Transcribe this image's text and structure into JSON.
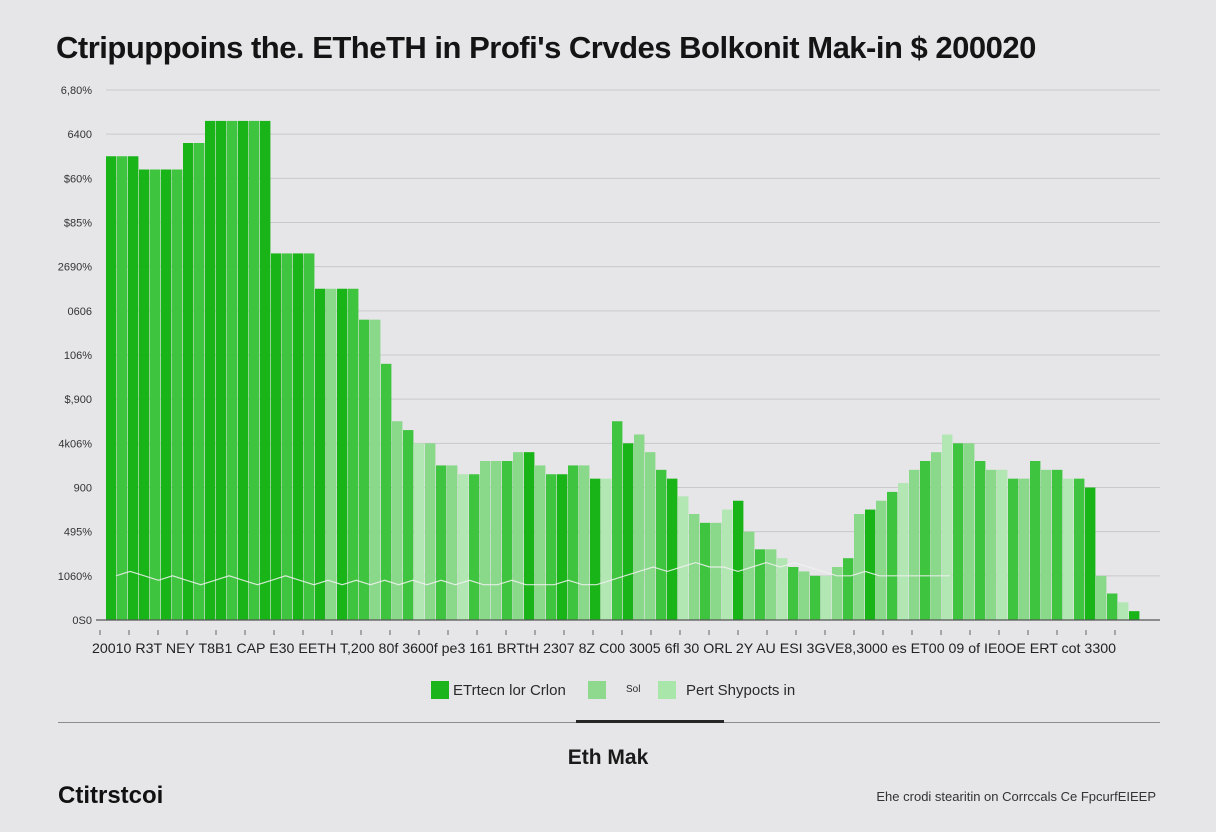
{
  "page": {
    "title": "Ctripuppoins the. ETheTH in Profi's Crvdes Bolkonit Mak-in $ 200020",
    "subtitle": "Eth Mak",
    "brand": "Ctitrstcoi",
    "footnote": "Ehe crodi stearitin on Corrccals Ce FpcurfEIEEP"
  },
  "legend": [
    {
      "label": "ETrtecn lor Crlon",
      "color": "#1bb51b"
    },
    {
      "label": "Sol",
      "color": "#8ed98e"
    },
    {
      "label": "Pert Shypocts in",
      "color": "#a9e6a9"
    }
  ],
  "colors": {
    "dark_green": "#18b418",
    "mid_green": "#3fc43f",
    "light_green": "#8ad88a",
    "pale_green": "#b2e6b2",
    "grid": "#c9c9cc",
    "axis": "#555555",
    "line": "#f2f2f2"
  },
  "chart_data": {
    "type": "bar",
    "title": "Ctripuppoins the. ETheTH in Profi's Crvdes Bolkonit Mak-in $ 200020",
    "xlabel": "",
    "ylabel": "",
    "y_tick_labels": [
      "0S0",
      "1060%",
      "495%",
      "900",
      "4k06%",
      "$,900",
      "106%",
      "0606",
      "2690%",
      "$85%",
      "$60%",
      "6400",
      "6,80%"
    ],
    "x_tick_labels": "20010 R3T  NEY  T8B1 CAP E30  EETH T,200 80f 3600f  pe3 161  BRTtH  2307 8Z C00  3005  6fl 30 ORL 2Y AU  ESI 3GVE8,3000  es ET00 09 of IE0OE ERT cot  3300",
    "ylim": [
      0,
      12
    ],
    "grid": true,
    "series": [
      {
        "values": [
          10.5,
          10.5,
          10.5,
          10.2,
          10.2,
          10.2,
          10.2,
          10.8,
          10.8,
          11.3,
          11.3,
          11.3,
          11.3,
          11.3,
          11.3,
          8.3,
          8.3,
          8.3,
          8.3,
          7.5,
          7.5,
          7.5,
          7.5,
          6.8,
          6.8,
          5.8,
          4.5,
          4.3,
          4.0,
          4.0,
          3.5,
          3.5,
          3.3,
          3.3,
          3.6,
          3.6,
          3.6,
          3.8,
          3.8,
          3.5,
          3.3,
          3.3,
          3.5,
          3.5,
          3.2,
          3.2,
          4.5,
          4.0,
          4.2,
          3.8,
          3.4,
          3.2,
          2.8,
          2.4,
          2.2,
          2.2,
          2.5,
          2.7,
          2.0,
          1.6,
          1.6,
          1.4,
          1.2,
          1.1,
          1.0,
          1.0,
          1.2,
          1.4,
          2.4,
          2.5,
          2.7,
          2.9,
          3.1,
          3.4,
          3.6,
          3.8,
          4.2,
          4.0,
          4.0,
          3.6,
          3.4,
          3.4,
          3.2,
          3.2,
          3.6,
          3.4,
          3.4,
          3.2,
          3.2,
          3.0,
          1.0,
          0.6,
          0.4,
          0.2
        ],
        "shades": [
          0,
          1,
          0,
          0,
          1,
          0,
          1,
          0,
          1,
          0,
          0,
          1,
          0,
          1,
          0,
          0,
          1,
          0,
          1,
          0,
          2,
          0,
          1,
          1,
          2,
          1,
          2,
          1,
          3,
          2,
          1,
          2,
          3,
          1,
          2,
          2,
          1,
          2,
          0,
          2,
          1,
          0,
          1,
          2,
          0,
          3,
          1,
          0,
          2,
          2,
          1,
          0,
          3,
          2,
          1,
          2,
          3,
          0,
          2,
          1,
          2,
          3,
          1,
          2,
          1,
          3,
          2,
          1,
          2,
          0,
          2,
          1,
          3,
          2,
          1,
          2,
          3,
          1,
          2,
          1,
          2,
          3,
          1,
          2,
          1,
          2,
          1,
          3,
          1,
          0,
          2,
          1,
          3,
          0
        ]
      }
    ],
    "line_overlay": [
      1.0,
      1.1,
      1.0,
      0.9,
      1.0,
      0.9,
      0.8,
      0.9,
      1.0,
      0.9,
      0.8,
      0.9,
      1.0,
      0.9,
      0.8,
      0.9,
      0.8,
      0.9,
      0.8,
      0.9,
      0.8,
      0.9,
      0.8,
      0.9,
      0.8,
      0.9,
      0.8,
      0.8,
      0.9,
      0.8,
      0.8,
      0.8,
      0.9,
      0.8,
      0.8,
      0.9,
      1.0,
      1.1,
      1.2,
      1.1,
      1.2,
      1.3,
      1.2,
      1.2,
      1.1,
      1.2,
      1.3,
      1.2,
      1.3,
      1.2,
      1.1,
      1.0,
      1.0,
      1.1,
      1.0,
      1.0,
      1.0,
      1.0,
      1.0,
      1.0
    ]
  }
}
